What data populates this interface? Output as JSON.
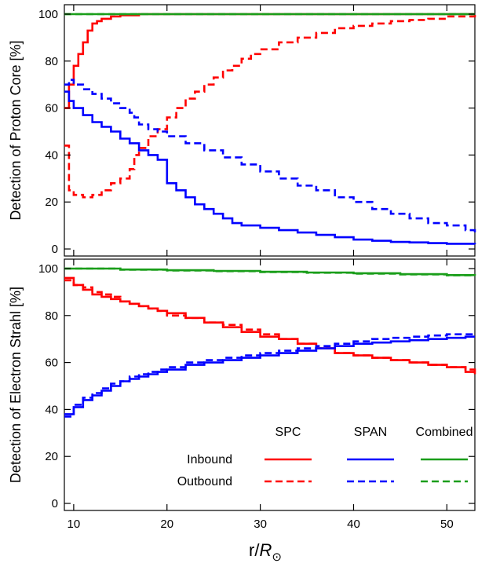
{
  "chart_data": [
    {
      "type": "line",
      "ylabel": "Detection of Proton Core [%]",
      "xlim": [
        9,
        53
      ],
      "ylim": [
        -3,
        104
      ],
      "xticks": [
        10,
        20,
        30,
        40,
        50
      ],
      "yticks": [
        0,
        20,
        40,
        60,
        80,
        100
      ],
      "grid": false,
      "series": [
        {
          "name": "SPC Inbound",
          "color": "#ff0000",
          "dashed": false,
          "x": [
            9,
            9.5,
            10,
            10.5,
            11,
            11.5,
            12,
            12.5,
            13,
            14,
            15,
            17,
            20,
            25,
            30,
            40,
            53
          ],
          "y": [
            60,
            70,
            78,
            83,
            88,
            93,
            96,
            97,
            98,
            99,
            99.5,
            100,
            100,
            100,
            100,
            100,
            100
          ]
        },
        {
          "name": "SPC Outbound",
          "color": "#ff0000",
          "dashed": true,
          "x": [
            9,
            9.5,
            10,
            11,
            12,
            13,
            14,
            15,
            16,
            16.5,
            17,
            18,
            19,
            20,
            21,
            22,
            23,
            24,
            25,
            26,
            27,
            28,
            29,
            30,
            32,
            34,
            36,
            38,
            40,
            42,
            44,
            46,
            48,
            50,
            53
          ],
          "y": [
            44,
            25,
            23,
            22,
            23,
            25,
            28,
            30,
            34,
            40,
            43,
            48,
            51,
            56,
            60,
            64,
            67,
            70,
            73,
            76,
            78,
            81,
            83,
            85,
            88,
            90,
            92,
            94,
            95,
            96,
            97,
            97.5,
            98,
            99,
            100
          ]
        },
        {
          "name": "SPAN Inbound",
          "color": "#0000ff",
          "dashed": false,
          "x": [
            9,
            9.5,
            10,
            11,
            12,
            13,
            14,
            15,
            16,
            17,
            18,
            19,
            20,
            21,
            22,
            23,
            24,
            25,
            26,
            27,
            28,
            30,
            32,
            34,
            36,
            38,
            40,
            42,
            44,
            46,
            48,
            50,
            53
          ],
          "y": [
            67,
            63,
            60,
            57,
            54,
            52,
            50,
            47,
            45,
            42,
            40,
            38,
            28,
            25,
            22,
            19,
            17,
            15,
            13,
            11,
            10,
            9,
            8,
            7,
            6,
            5,
            4,
            3.5,
            3,
            2.8,
            2.5,
            2.2,
            2
          ]
        },
        {
          "name": "SPAN Outbound",
          "color": "#0000ff",
          "dashed": true,
          "x": [
            9,
            9.5,
            10,
            11,
            12,
            13,
            14,
            15,
            16,
            16.5,
            17,
            18,
            19,
            20,
            22,
            24,
            26,
            28,
            30,
            32,
            34,
            36,
            38,
            40,
            42,
            44,
            46,
            48,
            50,
            52,
            53
          ],
          "y": [
            70,
            72,
            70,
            68,
            66,
            64,
            62,
            60,
            58,
            56,
            53,
            51,
            50,
            48,
            45,
            42,
            39,
            36,
            33,
            30,
            27,
            25,
            22,
            20,
            17,
            15,
            13,
            11,
            10,
            8,
            7
          ]
        },
        {
          "name": "Combined Inbound",
          "color": "#1a9e1a",
          "dashed": false,
          "x": [
            9,
            53
          ],
          "y": [
            100,
            100
          ]
        },
        {
          "name": "Combined Outbound",
          "color": "#1a9e1a",
          "dashed": true,
          "x": [
            9,
            53
          ],
          "y": [
            100,
            100
          ]
        }
      ]
    },
    {
      "type": "line",
      "ylabel": "Detection of Electron Strahl [%]",
      "xlabel": "r/R⊙",
      "xlim": [
        9,
        53
      ],
      "ylim": [
        -3,
        104
      ],
      "xticks": [
        10,
        20,
        30,
        40,
        50
      ],
      "yticks": [
        0,
        20,
        40,
        60,
        80,
        100
      ],
      "grid": false,
      "series": [
        {
          "name": "SPC Inbound",
          "color": "#ff0000",
          "dashed": false,
          "x": [
            9,
            10,
            11,
            12,
            13,
            14,
            15,
            16,
            17,
            18,
            19,
            20,
            22,
            24,
            26,
            28,
            30,
            32,
            34,
            36,
            38,
            40,
            42,
            44,
            46,
            48,
            50,
            52,
            53
          ],
          "y": [
            96,
            93,
            91,
            89,
            88,
            87,
            86,
            85,
            84,
            83,
            82,
            81,
            79,
            77,
            75,
            73,
            71,
            70,
            68,
            66,
            64,
            63,
            62,
            61,
            60,
            59,
            58,
            56,
            55
          ]
        },
        {
          "name": "SPC Outbound",
          "color": "#ff0000",
          "dashed": true,
          "x": [
            9,
            10,
            11,
            12,
            13,
            14,
            15,
            16,
            17,
            18,
            19,
            20,
            22,
            24,
            26,
            28,
            30,
            32,
            34,
            36,
            38,
            40,
            42,
            44,
            46,
            48,
            50,
            52,
            53
          ],
          "y": [
            95,
            93,
            92,
            90,
            89,
            88,
            86,
            85,
            84,
            83,
            82,
            80,
            79,
            77,
            76,
            74,
            72,
            70,
            68,
            66,
            64,
            63,
            62,
            61,
            60,
            59,
            58,
            57,
            56
          ]
        },
        {
          "name": "SPAN Inbound",
          "color": "#0000ff",
          "dashed": false,
          "x": [
            9,
            10,
            11,
            12,
            13,
            14,
            15,
            16,
            17,
            18,
            19,
            20,
            22,
            24,
            26,
            28,
            30,
            32,
            34,
            36,
            38,
            40,
            42,
            44,
            46,
            48,
            50,
            52,
            53
          ],
          "y": [
            38,
            41,
            44,
            46,
            48,
            50,
            52,
            53,
            54,
            55,
            56,
            57,
            59,
            60,
            61,
            62,
            63,
            64,
            65,
            66,
            67,
            68,
            68.5,
            69,
            69.5,
            70,
            70.5,
            71,
            71
          ]
        },
        {
          "name": "SPAN Outbound",
          "color": "#0000ff",
          "dashed": true,
          "x": [
            9,
            10,
            11,
            12,
            13,
            14,
            15,
            16,
            17,
            18,
            19,
            20,
            22,
            24,
            26,
            28,
            30,
            32,
            34,
            36,
            38,
            40,
            42,
            44,
            46,
            48,
            50,
            52,
            53
          ],
          "y": [
            37,
            42,
            45,
            47,
            49,
            51,
            52,
            54,
            55,
            56,
            57,
            58,
            60,
            61,
            62,
            63,
            64,
            65,
            66,
            67,
            68,
            69,
            70,
            70.5,
            71,
            71.5,
            72,
            72,
            72
          ]
        },
        {
          "name": "Combined Inbound",
          "color": "#1a9e1a",
          "dashed": false,
          "x": [
            9,
            15,
            20,
            25,
            30,
            35,
            40,
            45,
            50,
            53
          ],
          "y": [
            100,
            99.6,
            99.3,
            99,
            98.6,
            98.3,
            98,
            97.6,
            97.2,
            97
          ]
        },
        {
          "name": "Combined Outbound",
          "color": "#1a9e1a",
          "dashed": true,
          "x": [
            9,
            15,
            20,
            25,
            30,
            35,
            40,
            45,
            50,
            53
          ],
          "y": [
            100,
            99.5,
            99.2,
            98.9,
            98.5,
            98.2,
            97.8,
            97.5,
            97.1,
            96.9
          ]
        }
      ]
    }
  ],
  "legend": {
    "columns": [
      "SPC",
      "SPAN",
      "Combined"
    ],
    "rows": [
      "Inbound",
      "Outbound"
    ],
    "colors": [
      "#ff0000",
      "#0000ff",
      "#1a9e1a"
    ]
  }
}
